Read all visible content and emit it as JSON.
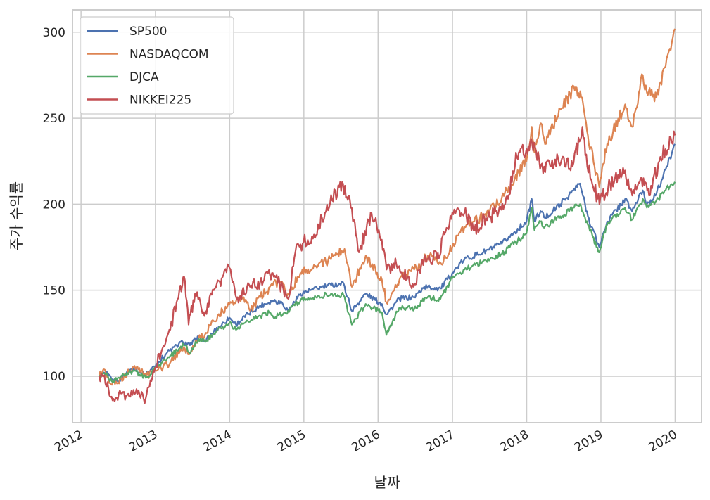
{
  "chart_data": {
    "type": "line",
    "title": "",
    "xlabel": "날짜",
    "ylabel": "주가 수익률",
    "xlim": [
      "2011-11-20",
      "2020-05-10"
    ],
    "ylim": [
      73,
      313
    ],
    "x_ticks": [
      "2012-01-01",
      "2013-01-01",
      "2014-01-01",
      "2015-01-01",
      "2016-01-01",
      "2017-01-01",
      "2018-01-01",
      "2019-01-01",
      "2020-01-01"
    ],
    "x_tick_labels": [
      "2012",
      "2013",
      "2014",
      "2015",
      "2016",
      "2017",
      "2018",
      "2019",
      "2020"
    ],
    "y_ticks": [
      100,
      150,
      200,
      250,
      300
    ],
    "y_tick_labels": [
      "100",
      "150",
      "200",
      "250",
      "300"
    ],
    "grid": true,
    "legend_position": "top-left",
    "series": [
      {
        "name": "SP500",
        "color": "#4c72b0",
        "x": [
          "2012-03-30",
          "2012-05-01",
          "2012-06-01",
          "2012-07-01",
          "2012-08-01",
          "2012-09-15",
          "2012-10-15",
          "2012-11-15",
          "2013-01-15",
          "2013-03-01",
          "2013-05-15",
          "2013-06-20",
          "2013-08-01",
          "2013-09-01",
          "2013-10-15",
          "2013-12-31",
          "2014-02-01",
          "2014-04-01",
          "2014-06-01",
          "2014-08-01",
          "2014-09-15",
          "2014-10-15",
          "2014-12-15",
          "2015-02-01",
          "2015-05-15",
          "2015-07-15",
          "2015-08-25",
          "2015-11-01",
          "2016-01-20",
          "2016-02-11",
          "2016-04-15",
          "2016-06-27",
          "2016-08-15",
          "2016-11-03",
          "2016-12-31",
          "2017-03-01",
          "2017-06-01",
          "2017-09-01",
          "2017-12-31",
          "2018-01-26",
          "2018-02-08",
          "2018-03-10",
          "2018-04-01",
          "2018-06-15",
          "2018-09-20",
          "2018-10-29",
          "2018-12-24",
          "2019-02-01",
          "2019-04-30",
          "2019-06-03",
          "2019-07-26",
          "2019-08-15",
          "2019-10-01",
          "2019-11-15",
          "2019-12-31"
        ],
        "values": [
          100,
          102,
          98,
          97,
          101,
          105,
          102,
          101,
          108,
          114,
          120,
          118,
          123,
          120,
          126,
          134,
          130,
          136,
          141,
          144,
          143,
          138,
          148,
          150,
          153,
          154,
          138,
          148,
          142,
          136,
          145,
          146,
          152,
          151,
          160,
          168,
          172,
          177,
          190,
          203,
          190,
          196,
          192,
          200,
          212,
          193,
          175,
          190,
          203,
          196,
          208,
          200,
          206,
          220,
          235
        ]
      },
      {
        "name": "NASDAQCOM",
        "color": "#dd8452",
        "x": [
          "2012-03-30",
          "2012-04-20",
          "2012-06-01",
          "2012-07-01",
          "2012-08-15",
          "2012-09-20",
          "2012-11-15",
          "2013-01-15",
          "2013-03-15",
          "2013-05-20",
          "2013-06-20",
          "2013-08-01",
          "2013-09-01",
          "2013-10-15",
          "2013-12-31",
          "2014-03-01",
          "2014-04-15",
          "2014-06-01",
          "2014-08-01",
          "2014-09-15",
          "2014-10-15",
          "2014-12-15",
          "2015-03-01",
          "2015-05-15",
          "2015-07-20",
          "2015-08-25",
          "2015-11-01",
          "2016-01-20",
          "2016-02-11",
          "2016-04-15",
          "2016-06-27",
          "2016-09-01",
          "2016-11-03",
          "2016-12-31",
          "2017-03-01",
          "2017-06-01",
          "2017-09-01",
          "2017-12-31",
          "2018-01-26",
          "2018-02-08",
          "2018-03-12",
          "2018-04-01",
          "2018-06-15",
          "2018-08-30",
          "2018-10-01",
          "2018-10-29",
          "2018-12-24",
          "2019-02-01",
          "2019-04-30",
          "2019-06-03",
          "2019-07-26",
          "2019-08-15",
          "2019-10-01",
          "2019-11-15",
          "2019-12-31"
        ],
        "values": [
          100,
          104,
          95,
          96,
          101,
          106,
          100,
          104,
          108,
          117,
          113,
          122,
          124,
          132,
          142,
          146,
          139,
          146,
          153,
          155,
          148,
          160,
          164,
          168,
          174,
          152,
          170,
          156,
          143,
          156,
          162,
          170,
          166,
          175,
          187,
          193,
          204,
          225,
          245,
          230,
          247,
          235,
          255,
          268,
          262,
          240,
          210,
          235,
          258,
          245,
          275,
          265,
          262,
          280,
          302
        ]
      },
      {
        "name": "DJCA",
        "color": "#55a868",
        "x": [
          "2012-03-30",
          "2012-05-01",
          "2012-06-01",
          "2012-07-15",
          "2012-09-15",
          "2012-11-15",
          "2013-01-15",
          "2013-03-15",
          "2013-05-20",
          "2013-06-24",
          "2013-08-01",
          "2013-09-01",
          "2013-10-15",
          "2013-12-31",
          "2014-02-01",
          "2014-04-01",
          "2014-07-15",
          "2014-08-05",
          "2014-10-15",
          "2014-12-15",
          "2015-03-01",
          "2015-05-15",
          "2015-07-15",
          "2015-08-25",
          "2015-11-01",
          "2016-01-20",
          "2016-02-11",
          "2016-04-15",
          "2016-06-27",
          "2016-09-01",
          "2016-11-03",
          "2016-12-31",
          "2017-03-01",
          "2017-06-01",
          "2017-09-01",
          "2017-12-31",
          "2018-01-26",
          "2018-02-08",
          "2018-03-10",
          "2018-04-01",
          "2018-06-15",
          "2018-09-20",
          "2018-10-29",
          "2018-12-24",
          "2019-02-01",
          "2019-04-30",
          "2019-06-03",
          "2019-07-26",
          "2019-08-15",
          "2019-10-01",
          "2019-11-15",
          "2019-12-31"
        ],
        "values": [
          100,
          101,
          97,
          100,
          103,
          99,
          106,
          112,
          118,
          114,
          122,
          120,
          125,
          131,
          127,
          132,
          137,
          134,
          138,
          144,
          146,
          148,
          147,
          130,
          142,
          137,
          124,
          140,
          139,
          146,
          145,
          157,
          162,
          167,
          171,
          183,
          198,
          185,
          190,
          187,
          193,
          200,
          188,
          172,
          188,
          198,
          191,
          203,
          198,
          202,
          208,
          213
        ]
      },
      {
        "name": "NIKKEI225",
        "color": "#c44e52",
        "x": [
          "2012-03-30",
          "2012-04-20",
          "2012-06-04",
          "2012-07-15",
          "2012-08-15",
          "2012-09-15",
          "2012-10-15",
          "2012-11-14",
          "2012-12-31",
          "2013-02-01",
          "2013-03-15",
          "2013-04-15",
          "2013-05-22",
          "2013-06-13",
          "2013-07-15",
          "2013-08-30",
          "2013-10-15",
          "2013-12-31",
          "2014-02-04",
          "2014-04-11",
          "2014-06-15",
          "2014-08-01",
          "2014-10-17",
          "2014-11-20",
          "2014-12-31",
          "2015-02-15",
          "2015-04-15",
          "2015-06-24",
          "2015-08-10",
          "2015-09-29",
          "2015-11-30",
          "2016-01-05",
          "2016-02-12",
          "2016-03-31",
          "2016-06-24",
          "2016-08-15",
          "2016-10-31",
          "2016-11-09",
          "2016-12-31",
          "2017-03-01",
          "2017-04-14",
          "2017-06-15",
          "2017-09-08",
          "2017-10-30",
          "2017-11-09",
          "2017-12-31",
          "2018-01-23",
          "2018-03-23",
          "2018-05-21",
          "2018-08-15",
          "2018-10-02",
          "2018-10-26",
          "2018-12-25",
          "2019-02-15",
          "2019-04-25",
          "2019-06-04",
          "2019-07-15",
          "2019-08-26",
          "2019-10-15",
          "2019-11-15",
          "2019-12-31"
        ],
        "values": [
          100,
          100,
          86,
          90,
          89,
          92,
          89,
          87,
          105,
          115,
          127,
          143,
          158,
          130,
          148,
          135,
          150,
          163,
          145,
          152,
          155,
          160,
          145,
          172,
          178,
          180,
          195,
          210,
          205,
          172,
          195,
          185,
          162,
          165,
          152,
          168,
          170,
          180,
          195,
          195,
          185,
          192,
          197,
          218,
          230,
          232,
          238,
          218,
          226,
          222,
          245,
          222,
          200,
          212,
          218,
          205,
          215,
          205,
          225,
          232,
          240
        ]
      }
    ]
  }
}
